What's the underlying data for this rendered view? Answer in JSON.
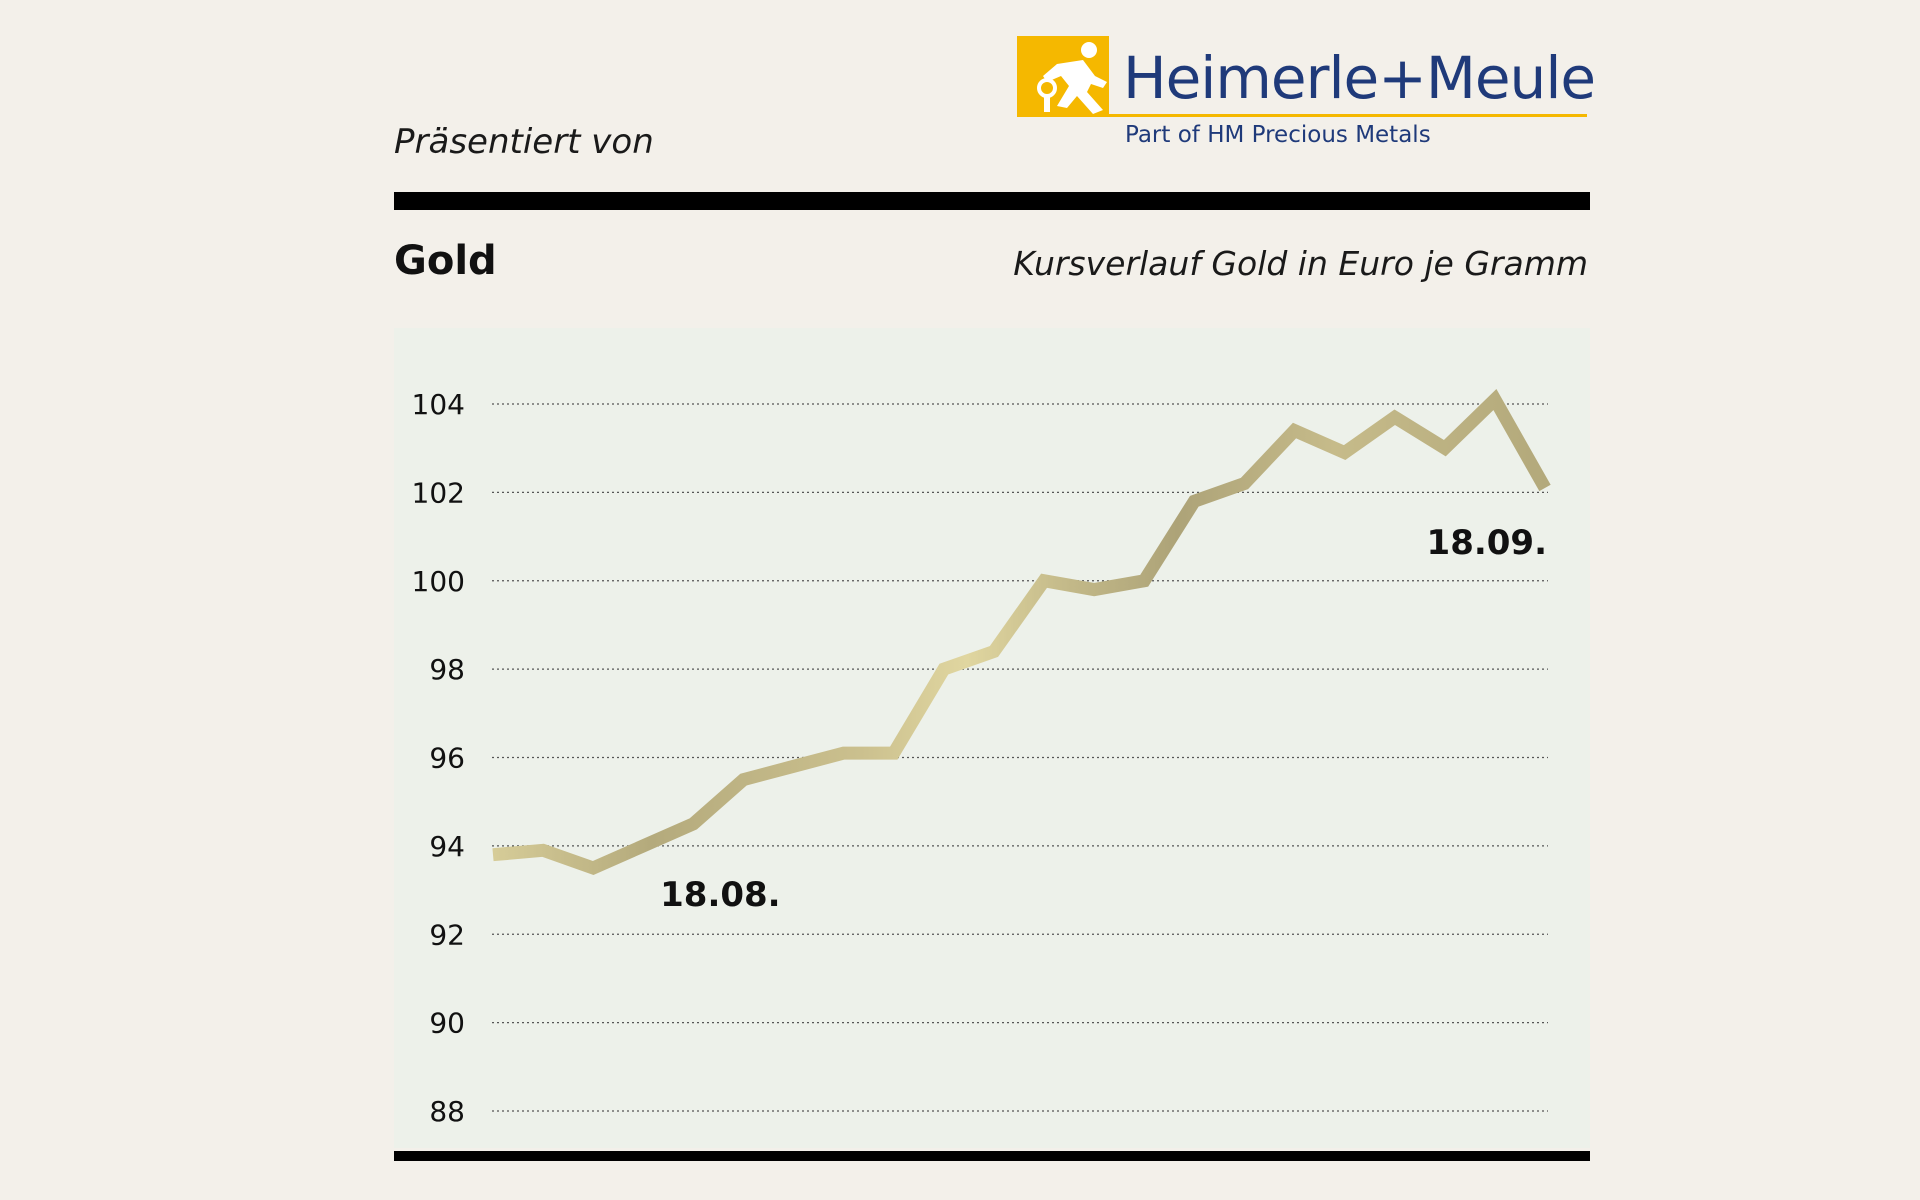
{
  "presented_by": "Präsentiert von",
  "logo": {
    "name": "Heimerle+Meule",
    "tagline": "Part of HM Precious Metals",
    "colors": {
      "yellow": "#f5b800",
      "navy": "#1f3a7a"
    }
  },
  "header": {
    "title": "Gold",
    "subtitle": "Kursverlauf Gold in Euro je Gramm"
  },
  "chart_data": {
    "type": "line",
    "title": "Gold",
    "subtitle": "Kursverlauf Gold in Euro je Gramm",
    "xlabel": "",
    "ylabel": "",
    "ylim": [
      88,
      104
    ],
    "yticks": [
      104,
      102,
      100,
      98,
      96,
      94,
      92,
      90,
      88
    ],
    "grid": "horizontal-dotted",
    "annotations": [
      {
        "text": "18.08.",
        "index": 4
      },
      {
        "text": "18.09.",
        "index": 21
      }
    ],
    "series": [
      {
        "values": [
          93.8,
          93.9,
          93.5,
          94.0,
          94.5,
          95.5,
          95.8,
          96.1,
          96.1,
          98.0,
          98.4,
          100.0,
          99.8,
          100.0,
          101.8,
          102.2,
          103.4,
          102.9,
          103.7,
          103.0,
          104.1,
          102.1
        ]
      }
    ],
    "colors": {
      "line_dark": "#b6ac7c",
      "line_light": "#ddd29c",
      "grid": "#555555",
      "plot_background": "#edf1ea"
    }
  }
}
